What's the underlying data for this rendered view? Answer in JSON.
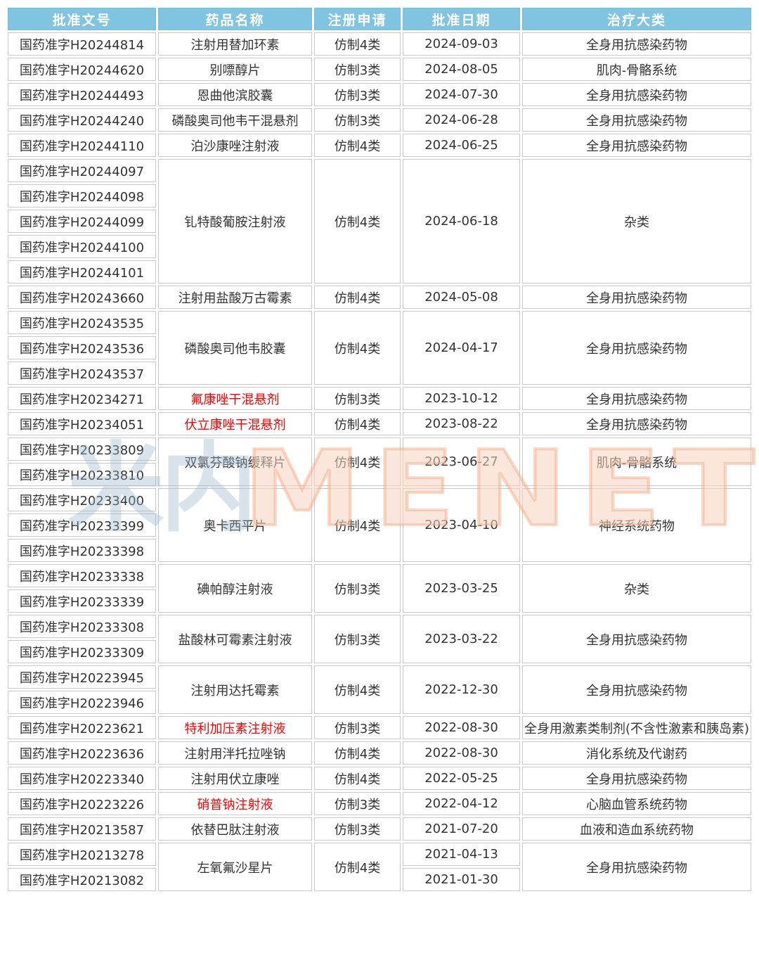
{
  "colors": {
    "header_bg": "#7fc4e1",
    "header_text": "#ffffff",
    "cell_text": "#333333",
    "red_text": "#ff0000",
    "border": "#c9c9c9",
    "watermark_orange": "#f0a37a",
    "watermark_gray": "#9cb5cb"
  },
  "watermark": {
    "logo_text": "米内",
    "brand_text": "MENET"
  },
  "table": {
    "columns": [
      {
        "key": "approval-no",
        "label": "批准文号"
      },
      {
        "key": "drug-name",
        "label": "药品名称"
      },
      {
        "key": "reg-type",
        "label": "注册申请"
      },
      {
        "key": "approval-date",
        "label": "批准日期"
      },
      {
        "key": "category",
        "label": "治疗大类"
      }
    ],
    "groups": [
      {
        "approval_nos": [
          "国药准字H20244814"
        ],
        "drug_name": "注射用替加环素",
        "red": false,
        "reg_type": "仿制4类",
        "dates": [
          "2024-09-03"
        ],
        "category": "全身用抗感染药物"
      },
      {
        "approval_nos": [
          "国药准字H20244620"
        ],
        "drug_name": "别嘌醇片",
        "red": false,
        "reg_type": "仿制3类",
        "dates": [
          "2024-08-05"
        ],
        "category": "肌肉-骨骼系统"
      },
      {
        "approval_nos": [
          "国药准字H20244493"
        ],
        "drug_name": "恩曲他滨胶囊",
        "red": false,
        "reg_type": "仿制3类",
        "dates": [
          "2024-07-30"
        ],
        "category": "全身用抗感染药物"
      },
      {
        "approval_nos": [
          "国药准字H20244240"
        ],
        "drug_name": "磷酸奥司他韦干混悬剂",
        "red": false,
        "reg_type": "仿制3类",
        "dates": [
          "2024-06-28"
        ],
        "category": "全身用抗感染药物"
      },
      {
        "approval_nos": [
          "国药准字H20244110"
        ],
        "drug_name": "泊沙康唑注射液",
        "red": false,
        "reg_type": "仿制4类",
        "dates": [
          "2024-06-25"
        ],
        "category": "全身用抗感染药物"
      },
      {
        "approval_nos": [
          "国药准字H20244097",
          "国药准字H20244098",
          "国药准字H20244099",
          "国药准字H20244100",
          "国药准字H20244101"
        ],
        "drug_name": "钆特酸葡胺注射液",
        "red": false,
        "reg_type": "仿制4类",
        "dates": [
          "2024-06-18"
        ],
        "category": "杂类"
      },
      {
        "approval_nos": [
          "国药准字H20243660"
        ],
        "drug_name": "注射用盐酸万古霉素",
        "red": false,
        "reg_type": "仿制4类",
        "dates": [
          "2024-05-08"
        ],
        "category": "全身用抗感染药物"
      },
      {
        "approval_nos": [
          "国药准字H20243535",
          "国药准字H20243536",
          "国药准字H20243537"
        ],
        "drug_name": "磷酸奥司他韦胶囊",
        "red": false,
        "reg_type": "仿制4类",
        "dates": [
          "2024-04-17"
        ],
        "category": "全身用抗感染药物"
      },
      {
        "approval_nos": [
          "国药准字H20234271"
        ],
        "drug_name": "氟康唑干混悬剂",
        "red": true,
        "reg_type": "仿制3类",
        "dates": [
          "2023-10-12"
        ],
        "category": "全身用抗感染药物"
      },
      {
        "approval_nos": [
          "国药准字H20234051"
        ],
        "drug_name": "伏立康唑干混悬剂",
        "red": true,
        "reg_type": "仿制4类",
        "dates": [
          "2023-08-22"
        ],
        "category": "全身用抗感染药物"
      },
      {
        "approval_nos": [
          "国药准字H20233809",
          "国药准字H20233810"
        ],
        "drug_name": "双氯芬酸钠缓释片",
        "red": false,
        "reg_type": "仿制4类",
        "dates": [
          "2023-06-27"
        ],
        "category": "肌肉-骨骼系统"
      },
      {
        "approval_nos": [
          "国药准字H20233400",
          "国药准字H20233399",
          "国药准字H20233398"
        ],
        "drug_name": "奥卡西平片",
        "red": false,
        "reg_type": "仿制4类",
        "dates": [
          "2023-04-10"
        ],
        "category": "神经系统药物"
      },
      {
        "approval_nos": [
          "国药准字H20233338",
          "国药准字H20233339"
        ],
        "drug_name": "碘帕醇注射液",
        "red": false,
        "reg_type": "仿制3类",
        "dates": [
          "2023-03-25"
        ],
        "category": "杂类"
      },
      {
        "approval_nos": [
          "国药准字H20233308",
          "国药准字H20233309"
        ],
        "drug_name": "盐酸林可霉素注射液",
        "red": false,
        "reg_type": "仿制3类",
        "dates": [
          "2023-03-22"
        ],
        "category": "全身用抗感染药物"
      },
      {
        "approval_nos": [
          "国药准字H20223945",
          "国药准字H20223946"
        ],
        "drug_name": "注射用达托霉素",
        "red": false,
        "reg_type": "仿制4类",
        "dates": [
          "2022-12-30"
        ],
        "category": "全身用抗感染药物"
      },
      {
        "approval_nos": [
          "国药准字H20223621"
        ],
        "drug_name": "特利加压素注射液",
        "red": true,
        "reg_type": "仿制3类",
        "dates": [
          "2022-08-30"
        ],
        "category": "全身用激素类制剂(不含性激素和胰岛素)"
      },
      {
        "approval_nos": [
          "国药准字H20223636"
        ],
        "drug_name": "注射用泮托拉唑钠",
        "red": false,
        "reg_type": "仿制4类",
        "dates": [
          "2022-08-30"
        ],
        "category": "消化系统及代谢药"
      },
      {
        "approval_nos": [
          "国药准字H20223340"
        ],
        "drug_name": "注射用伏立康唑",
        "red": false,
        "reg_type": "仿制4类",
        "dates": [
          "2022-05-25"
        ],
        "category": "全身用抗感染药物"
      },
      {
        "approval_nos": [
          "国药准字H20223226"
        ],
        "drug_name": "硝普钠注射液",
        "red": true,
        "reg_type": "仿制3类",
        "dates": [
          "2022-04-12"
        ],
        "category": "心脑血管系统药物"
      },
      {
        "approval_nos": [
          "国药准字H20213587"
        ],
        "drug_name": "依替巴肽注射液",
        "red": false,
        "reg_type": "仿制3类",
        "dates": [
          "2021-07-20"
        ],
        "category": "血液和造血系统药物"
      },
      {
        "approval_nos": [
          "国药准字H20213278",
          "国药准字H20213082"
        ],
        "drug_name": "左氧氟沙星片",
        "red": false,
        "reg_type": "仿制4类",
        "dates": [
          "2021-04-13",
          "2021-01-30"
        ],
        "category": "全身用抗感染药物"
      }
    ]
  }
}
